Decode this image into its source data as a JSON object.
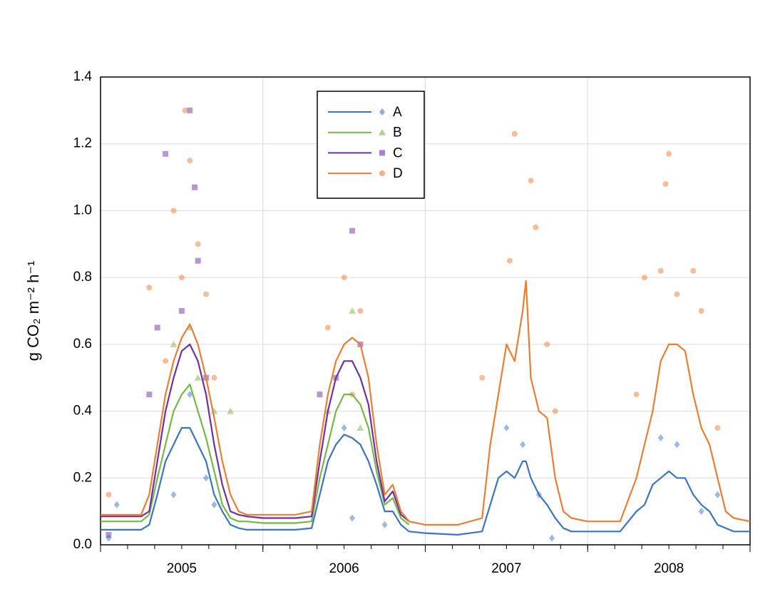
{
  "chart_data": {
    "type": "line",
    "ylabel": "g CO₂ m⁻² h⁻¹",
    "xlim": [
      2005,
      2009
    ],
    "ylim": [
      0,
      1.4
    ],
    "xticks": [
      {
        "value": 2005.5,
        "label": "2005"
      },
      {
        "value": 2006.5,
        "label": "2006"
      },
      {
        "value": 2007.5,
        "label": "2007"
      },
      {
        "value": 2008.5,
        "label": "2008"
      }
    ],
    "yticks": [
      {
        "value": 0,
        "label": "0.0"
      },
      {
        "value": 0.2,
        "label": "0.2"
      },
      {
        "value": 0.4,
        "label": "0.4"
      },
      {
        "value": 0.6,
        "label": "0.6"
      },
      {
        "value": 0.8,
        "label": "0.8"
      },
      {
        "value": 1.0,
        "label": "1.0"
      },
      {
        "value": 1.2,
        "label": "1.2"
      },
      {
        "value": 1.4,
        "label": "1.4"
      }
    ],
    "grid": true,
    "legend": "top-center",
    "x": [
      2005.0,
      2005.15,
      2005.25,
      2005.3,
      2005.35,
      2005.4,
      2005.45,
      2005.5,
      2005.55,
      2005.6,
      2005.65,
      2005.7,
      2005.75,
      2005.8,
      2005.85,
      2005.9,
      2006.0,
      2006.2,
      2006.3,
      2006.35,
      2006.4,
      2006.45,
      2006.5,
      2006.55,
      2006.6,
      2006.65,
      2006.7,
      2006.75,
      2006.8,
      2006.85,
      2006.9,
      2007.0,
      2007.2,
      2007.35,
      2007.4,
      2007.45,
      2007.5,
      2007.55,
      2007.6,
      2007.62,
      2007.65,
      2007.7,
      2007.75,
      2007.8,
      2007.85,
      2007.9,
      2008.0,
      2008.2,
      2008.3,
      2008.35,
      2008.4,
      2008.45,
      2008.5,
      2008.55,
      2008.6,
      2008.65,
      2008.7,
      2008.75,
      2008.8,
      2008.85,
      2008.9,
      2009.0
    ],
    "series": [
      {
        "name": "A",
        "color": "#3a75c4",
        "marker": "diamond",
        "values": [
          0.045,
          0.045,
          0.045,
          0.06,
          0.15,
          0.25,
          0.3,
          0.35,
          0.35,
          0.3,
          0.25,
          0.15,
          0.1,
          0.06,
          0.05,
          0.045,
          0.045,
          0.045,
          0.05,
          0.15,
          0.25,
          0.3,
          0.33,
          0.32,
          0.3,
          0.25,
          0.18,
          0.1,
          0.1,
          0.06,
          0.04,
          0.035,
          0.03,
          0.04,
          0.12,
          0.2,
          0.22,
          0.2,
          0.25,
          0.25,
          0.2,
          0.15,
          0.12,
          0.08,
          0.05,
          0.04,
          0.04,
          0.04,
          0.1,
          0.12,
          0.18,
          0.2,
          0.22,
          0.2,
          0.2,
          0.15,
          0.12,
          0.1,
          0.06,
          0.05,
          0.04,
          0.04
        ],
        "points": {
          "x": [
            2005.05,
            2005.1,
            2005.45,
            2005.55,
            2005.65,
            2005.7,
            2006.5,
            2006.55,
            2006.75,
            2007.5,
            2007.6,
            2007.7,
            2007.78,
            2008.45,
            2008.55,
            2008.7,
            2008.8
          ],
          "y": [
            0.02,
            0.12,
            0.15,
            0.45,
            0.2,
            0.12,
            0.35,
            0.08,
            0.06,
            0.35,
            0.3,
            0.15,
            0.02,
            0.32,
            0.3,
            0.1,
            0.15
          ]
        }
      },
      {
        "name": "B",
        "color": "#74b944",
        "marker": "triangle",
        "values": [
          0.07,
          0.07,
          0.07,
          0.09,
          0.2,
          0.3,
          0.4,
          0.45,
          0.48,
          0.4,
          0.32,
          0.22,
          0.12,
          0.08,
          0.07,
          0.07,
          0.065,
          0.065,
          0.07,
          0.2,
          0.3,
          0.4,
          0.45,
          0.45,
          0.42,
          0.35,
          0.22,
          0.12,
          0.14,
          0.08,
          0.06,
          null,
          null,
          null,
          null,
          null,
          null,
          null,
          null,
          null,
          null,
          null,
          null,
          null,
          null,
          null,
          null,
          null,
          null,
          null,
          null,
          null,
          null,
          null,
          null,
          null,
          null,
          null,
          null,
          null,
          null,
          null
        ],
        "points": {
          "x": [
            2005.45,
            2005.55,
            2005.6,
            2005.7,
            2005.8,
            2006.4,
            2006.55,
            2006.6
          ],
          "y": [
            0.6,
            0.65,
            0.5,
            0.4,
            0.4,
            0.4,
            0.7,
            0.35
          ]
        }
      },
      {
        "name": "C",
        "color": "#7030a0",
        "marker": "square",
        "values": [
          0.085,
          0.085,
          0.085,
          0.1,
          0.25,
          0.4,
          0.5,
          0.58,
          0.6,
          0.55,
          0.45,
          0.3,
          0.18,
          0.1,
          0.09,
          0.085,
          0.08,
          0.08,
          0.085,
          0.25,
          0.4,
          0.5,
          0.55,
          0.55,
          0.5,
          0.42,
          0.25,
          0.13,
          0.16,
          0.09,
          0.07,
          null,
          null,
          null,
          null,
          null,
          null,
          null,
          null,
          null,
          null,
          null,
          null,
          null,
          null,
          null,
          null,
          null,
          null,
          null,
          null,
          null,
          null,
          null,
          null,
          null,
          null,
          null,
          null,
          null,
          null,
          null
        ],
        "points": {
          "x": [
            2005.35,
            2005.4,
            2005.55,
            2005.58,
            2005.6,
            2005.5,
            2005.65,
            2005.3,
            2005.05,
            2006.55,
            2006.6,
            2006.35,
            2006.45
          ],
          "y": [
            0.65,
            1.17,
            1.3,
            1.07,
            0.85,
            0.7,
            0.5,
            0.45,
            0.03,
            0.94,
            0.6,
            0.45,
            0.5
          ]
        }
      },
      {
        "name": "D",
        "color": "#ed7d31",
        "marker": "circle",
        "values": [
          0.09,
          0.09,
          0.09,
          0.15,
          0.3,
          0.45,
          0.55,
          0.62,
          0.66,
          0.6,
          0.5,
          0.38,
          0.25,
          0.15,
          0.1,
          0.09,
          0.09,
          0.09,
          0.1,
          0.3,
          0.45,
          0.55,
          0.6,
          0.62,
          0.6,
          0.5,
          0.3,
          0.15,
          0.18,
          0.1,
          0.07,
          0.06,
          0.06,
          0.08,
          0.3,
          0.45,
          0.6,
          0.55,
          0.7,
          0.79,
          0.5,
          0.4,
          0.38,
          0.2,
          0.1,
          0.08,
          0.07,
          0.07,
          0.2,
          0.3,
          0.4,
          0.55,
          0.6,
          0.6,
          0.58,
          0.45,
          0.35,
          0.3,
          0.2,
          0.1,
          0.08,
          0.07
        ],
        "points": {
          "x": [
            2005.3,
            2005.45,
            2005.52,
            2005.55,
            2005.6,
            2005.5,
            2005.65,
            2005.4,
            2005.7,
            2005.05,
            2006.5,
            2006.6,
            2006.4,
            2006.55,
            2007.35,
            2007.52,
            2007.55,
            2007.65,
            2007.68,
            2007.75,
            2007.8,
            2008.3,
            2008.45,
            2008.48,
            2008.5,
            2008.55,
            2008.65,
            2008.7,
            2008.8,
            2008.35
          ],
          "y": [
            0.77,
            1.0,
            1.3,
            1.15,
            0.9,
            0.8,
            0.75,
            0.55,
            0.5,
            0.15,
            0.8,
            0.7,
            0.65,
            0.45,
            0.5,
            0.85,
            1.23,
            1.09,
            0.95,
            0.6,
            0.4,
            0.45,
            0.82,
            1.08,
            1.17,
            0.75,
            0.82,
            0.7,
            0.35,
            0.8
          ]
        }
      }
    ]
  }
}
